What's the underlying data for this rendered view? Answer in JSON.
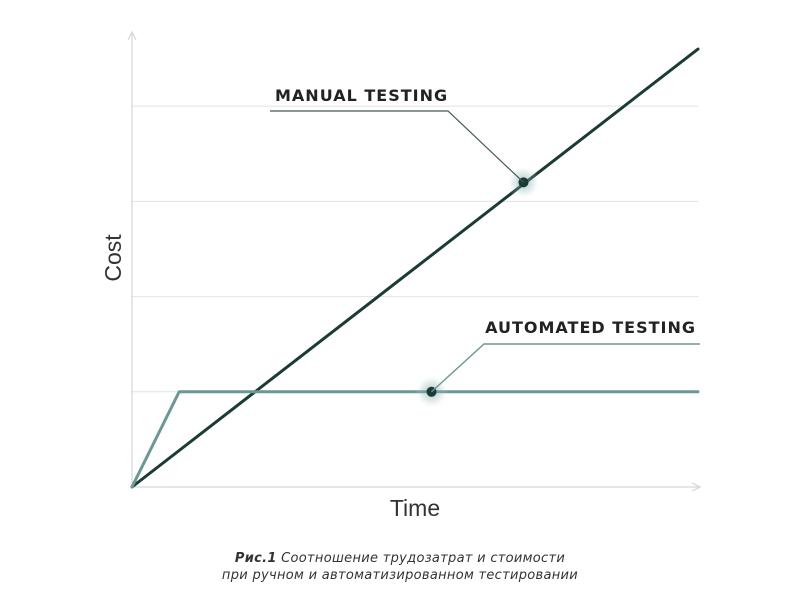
{
  "chart_data": {
    "type": "line",
    "title": "",
    "xlabel": "Time",
    "ylabel": "Cost",
    "xlim": [
      0,
      12
    ],
    "ylim": [
      0,
      4.8
    ],
    "grid": true,
    "series": [
      {
        "name": "MANUAL TESTING",
        "x": [
          0,
          12
        ],
        "y": [
          0,
          4.6
        ],
        "marker": {
          "x": 8.3,
          "y": 3.2
        },
        "color": "#1b3b37"
      },
      {
        "name": "AUTOMATED TESTING",
        "x": [
          0,
          1,
          12
        ],
        "y": [
          0,
          1,
          1
        ],
        "marker": {
          "x": 6.35,
          "y": 1
        },
        "color": "#6c9894"
      }
    ]
  },
  "caption": {
    "prefix": "Рис.1",
    "line1": "Соотношение трудозатрат и стоимости",
    "line2": "при ручном и автоматизированном тестировании"
  }
}
